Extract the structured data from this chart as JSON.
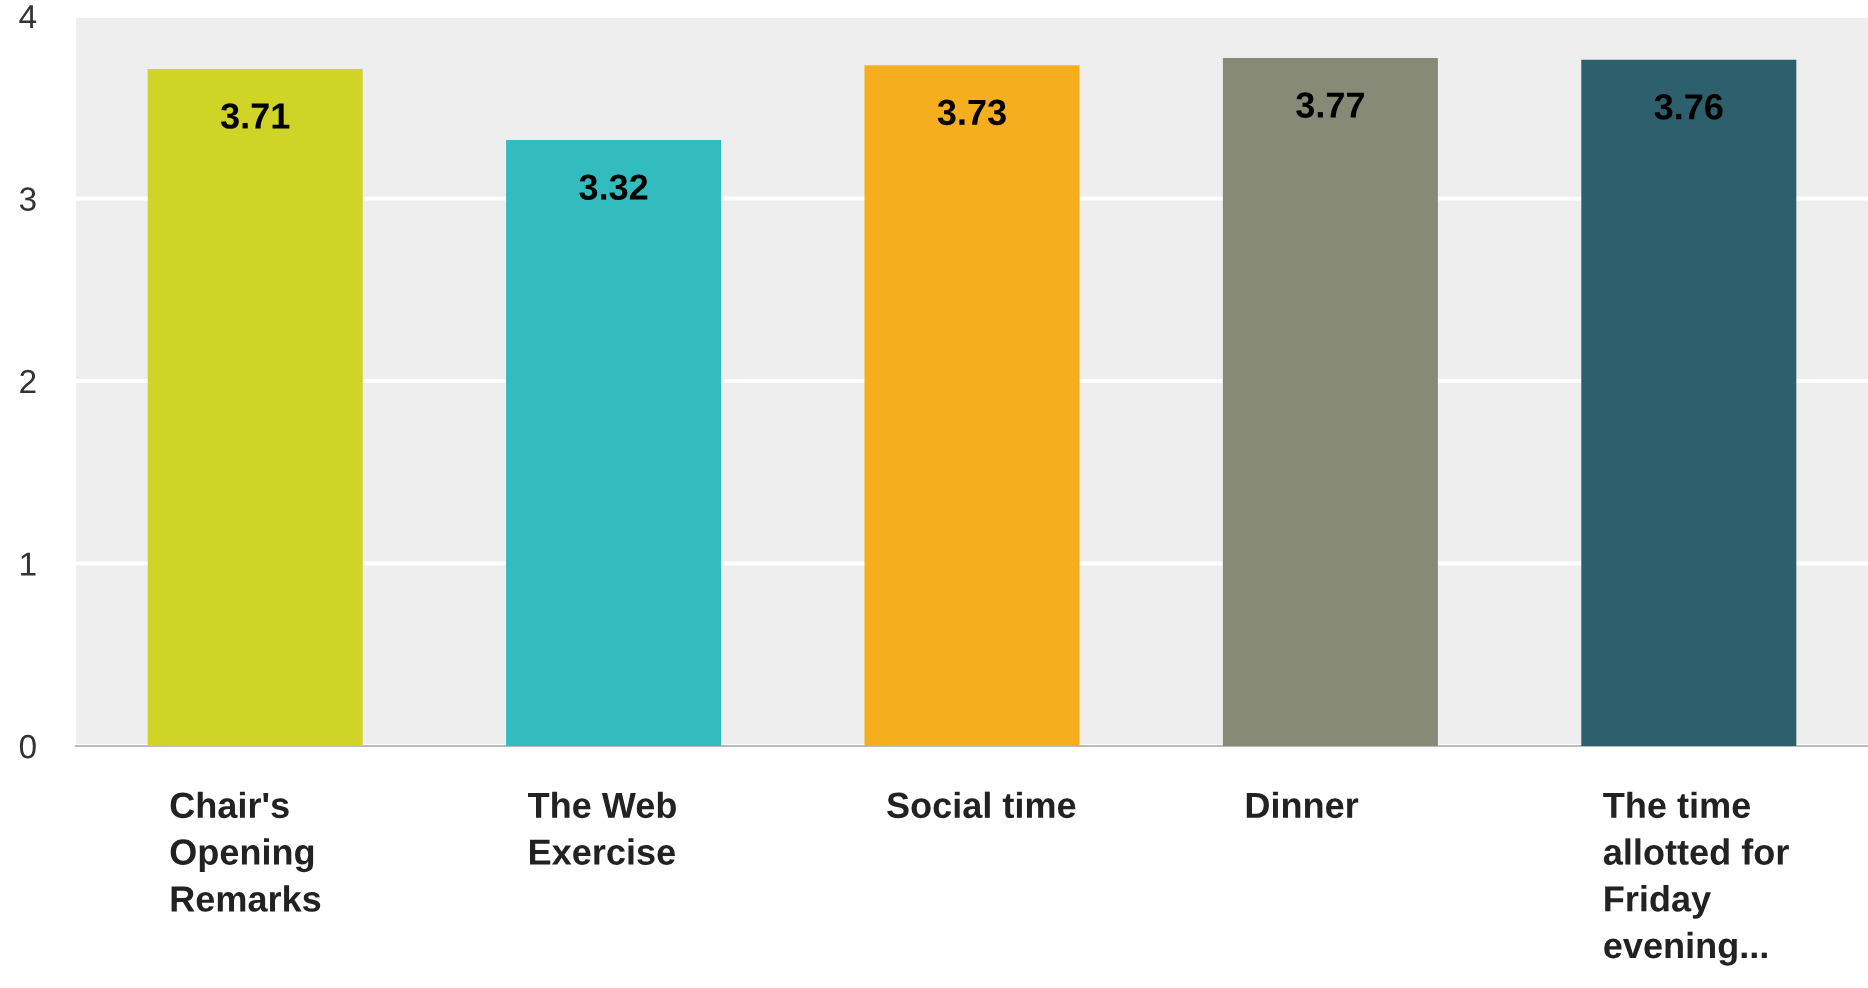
{
  "chart_data": {
    "type": "bar",
    "categories": [
      "Chair's Opening Remarks",
      "The Web Exercise",
      "Social time",
      "Dinner",
      "The time allotted for Friday evening..."
    ],
    "values": [
      3.71,
      3.32,
      3.73,
      3.77,
      3.76
    ],
    "colors": [
      "#cfd427",
      "#32bcbf",
      "#f5ae1e",
      "#888a78",
      "#2e5f6c"
    ],
    "ylim": [
      0,
      4
    ],
    "yticks": [
      0,
      1,
      2,
      3,
      4
    ],
    "grid": "y",
    "data_labels": true
  }
}
